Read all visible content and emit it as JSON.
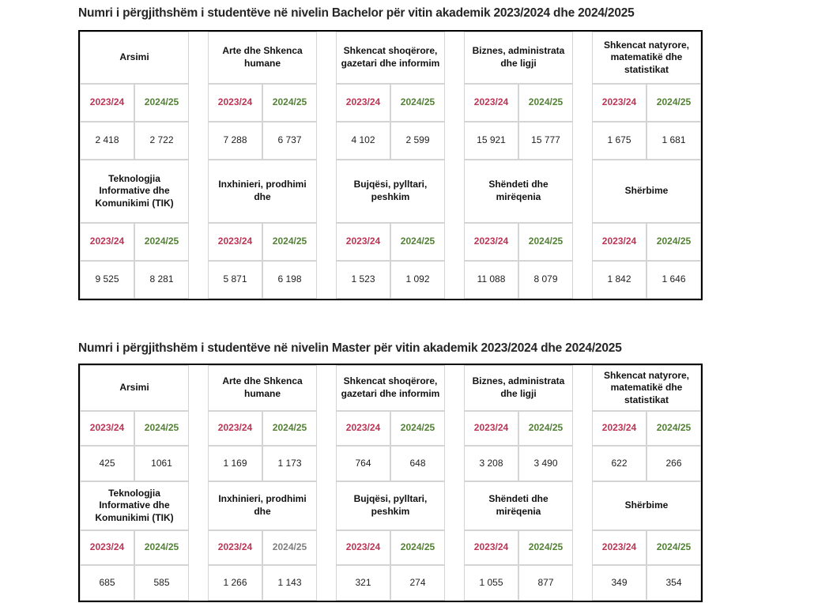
{
  "colors": {
    "year1": "#be3455",
    "year2": "#538135",
    "year2_muted": "#7f7f7f",
    "grid_line": "#d4d4d4"
  },
  "tables": [
    {
      "title": "Numri i përgjithshëm i studentëve në nivelin Bachelor për vitin akademik 2023/2024 dhe 2024/2025",
      "blocks": [
        {
          "groups": [
            {
              "category": "Arsimi",
              "y1": "2023/24",
              "y2": "2024/25",
              "v1": "2 418",
              "v2": "2 722"
            },
            {
              "category": "Arte dhe Shkenca humane",
              "y1": "2023/24",
              "y2": "2024/25",
              "v1": "7 288",
              "v2": "6 737"
            },
            {
              "category": "Shkencat shoqërore, gazetari dhe informim",
              "y1": "2023/24",
              "y2": "2024/25",
              "v1": "4 102",
              "v2": "2 599"
            },
            {
              "category": "Biznes, administrata dhe ligji",
              "y1": "2023/24",
              "y2": "2024/25",
              "v1": "15 921",
              "v2": "15 777"
            },
            {
              "category": "Shkencat natyrore, matematikë dhe statistikat",
              "y1": "2023/24",
              "y2": "2024/25",
              "v1": "1 675",
              "v2": "1 681"
            }
          ]
        },
        {
          "groups": [
            {
              "category": "Teknologjia Informative dhe Komunikimi (TIK)",
              "y1": "2023/24",
              "y2": "2024/25",
              "v1": "9 525",
              "v2": "8 281"
            },
            {
              "category": "Inxhinieri, prodhimi dhe",
              "y1": "2023/24",
              "y2": "2024/25",
              "v1": "5 871",
              "v2": "6 198"
            },
            {
              "category": "Bujqësi, pylltari, peshkim",
              "y1": "2023/24",
              "y2": "2024/25",
              "v1": "1 523",
              "v2": "1 092"
            },
            {
              "category": "Shëndeti dhe mirëqenia",
              "y1": "2023/24",
              "y2": "2024/25",
              "v1": "11 088",
              "v2": "8 079"
            },
            {
              "category": "Shërbime",
              "y1": "2023/24",
              "y2": "2024/25",
              "v1": "1 842",
              "v2": "1 646"
            }
          ]
        }
      ]
    },
    {
      "title": "Numri i përgjithshëm i studentëve në nivelin Master për vitin akademik 2023/2024 dhe 2024/2025",
      "blocks": [
        {
          "groups": [
            {
              "category": "Arsimi",
              "y1": "2023/24",
              "y2": "2024/25",
              "v1": "425",
              "v2": "1061"
            },
            {
              "category": "Arte dhe Shkenca humane",
              "y1": "2023/24",
              "y2": "2024/25",
              "v1": "1 169",
              "v2": "1 173"
            },
            {
              "category": "Shkencat shoqërore, gazetari dhe informim",
              "y1": "2023/24",
              "y2": "2024/25",
              "v1": "764",
              "v2": "648"
            },
            {
              "category": "Biznes, administrata dhe ligji",
              "y1": "2023/24",
              "y2": "2024/25",
              "v1": "3 208",
              "v2": "3 490"
            },
            {
              "category": "Shkencat natyrore, matematikë dhe statistikat",
              "y1": "2023/24",
              "y2": "2024/25",
              "v1": "622",
              "v2": "266"
            }
          ]
        },
        {
          "groups": [
            {
              "category": "Teknologjia Informative dhe Komunikimi (TIK)",
              "y1": "2023/24",
              "y2": "2024/25",
              "v1": "685",
              "v2": "585"
            },
            {
              "category": "Inxhinieri, prodhimi dhe",
              "y1": "2023/24",
              "y2": "2024/25",
              "v1": "1 266",
              "v2": "1 143",
              "y2_gray": true
            },
            {
              "category": "Bujqësi, pylltari, peshkim",
              "y1": "2023/24",
              "y2": "2024/25",
              "v1": "321",
              "v2": "274"
            },
            {
              "category": "Shëndeti dhe mirëqenia",
              "y1": "2023/24",
              "y2": "2024/25",
              "v1": "1 055",
              "v2": "877"
            },
            {
              "category": "Shërbime",
              "y1": "2023/24",
              "y2": "2024/25",
              "v1": "349",
              "v2": "354"
            }
          ]
        }
      ]
    }
  ]
}
